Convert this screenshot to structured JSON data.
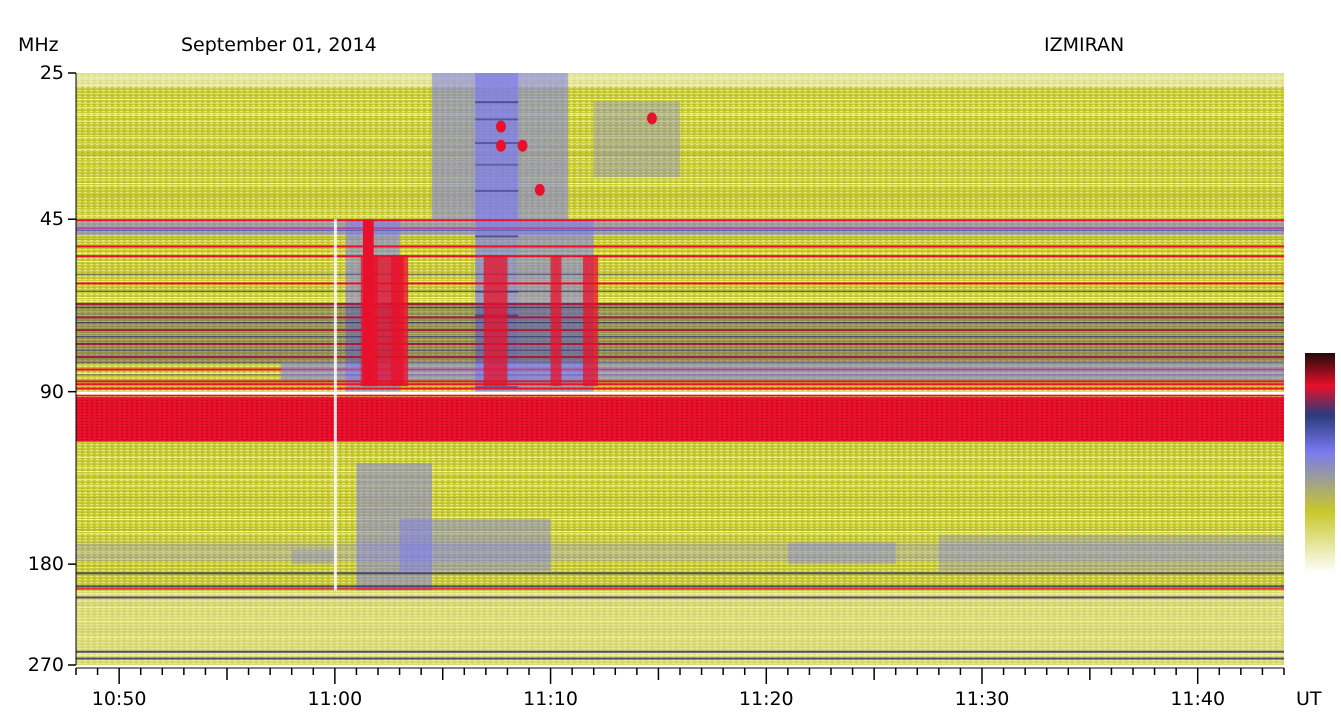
{
  "header": {
    "unit_label": "MHz",
    "date": "September 01, 2014",
    "observatory": "IZMIRAN",
    "time_unit": "UT"
  },
  "chart_data": {
    "type": "heatmap",
    "title": "September 01, 2014",
    "source": "IZMIRAN",
    "ylabel": "MHz",
    "xlabel": "UT",
    "y_scale": "log",
    "y_range": [
      25,
      270
    ],
    "y_ticks": [
      "25",
      "45",
      "90",
      "180",
      "270"
    ],
    "y_tick_values": [
      25,
      45,
      90,
      180,
      270
    ],
    "x_range": [
      "10:48",
      "11:44"
    ],
    "x_ticks": [
      "10:50",
      "11:00",
      "11:10",
      "11:20",
      "11:30",
      "11:40"
    ],
    "x_tick_minutes": [
      50,
      60,
      70,
      80,
      90,
      100
    ],
    "colors": {
      "low": "#ffffff",
      "mid_low": "#c8c82a",
      "mid": "#7a7af0",
      "mid_high": "#2a2a6a",
      "high": "#e8102a",
      "max": "#200a0a"
    },
    "features": [
      {
        "name": "type-III burst group",
        "t_start": "11:01",
        "t_end": "11:11",
        "f_low": 25,
        "f_high": 180
      },
      {
        "name": "interference band",
        "f_low": 90,
        "f_high": 110,
        "t_start": "10:48",
        "t_end": "11:44"
      },
      {
        "name": "interference band",
        "f_low": 45,
        "f_high": 47,
        "t_start": "10:48",
        "t_end": "11:44"
      }
    ]
  }
}
